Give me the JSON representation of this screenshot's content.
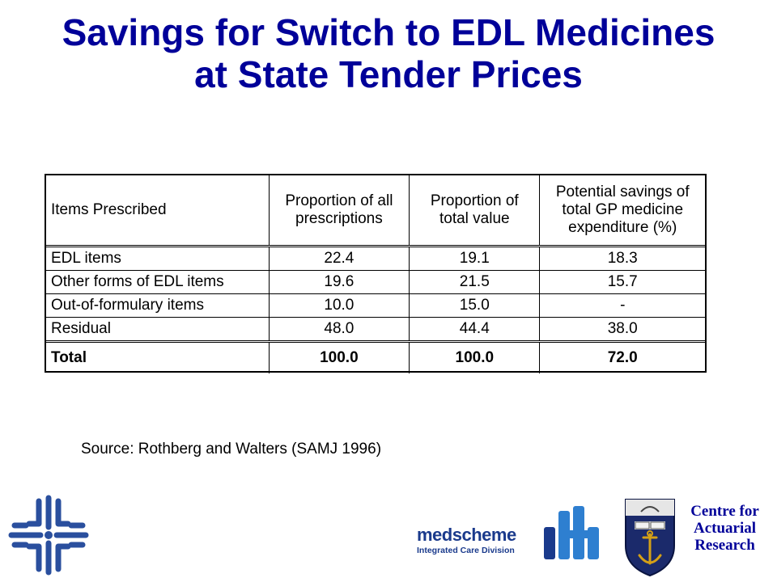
{
  "title": {
    "line1": "Savings for Switch to EDL Medicines",
    "line2": "at State Tender Prices"
  },
  "table": {
    "headers": [
      "Items Prescribed",
      "Proportion of all prescriptions",
      "Proportion of total value",
      "Potential savings of total GP medicine expenditure (%)"
    ],
    "rows": [
      [
        "EDL items",
        "22.4",
        "19.1",
        "18.3"
      ],
      [
        "Other forms of EDL items",
        "19.6",
        "21.5",
        "15.7"
      ],
      [
        "Out-of-formulary items",
        "10.0",
        "15.0",
        "-"
      ],
      [
        "Residual",
        "48.0",
        "44.4",
        "38.0"
      ]
    ],
    "total": [
      "Total",
      "100.0",
      "100.0",
      "72.0"
    ]
  },
  "source": "Source: Rothberg and Walters (SAMJ 1996)",
  "logos": {
    "medscheme_name": "medscheme",
    "medscheme_sub": "Integrated Care Division",
    "car_line1": "Centre for",
    "car_line2": "Actuarial",
    "car_line3": "Research"
  },
  "colors": {
    "title": "#000099",
    "logo_blue": "#1a3a8c",
    "logo_light_blue": "#2e7fd0"
  }
}
